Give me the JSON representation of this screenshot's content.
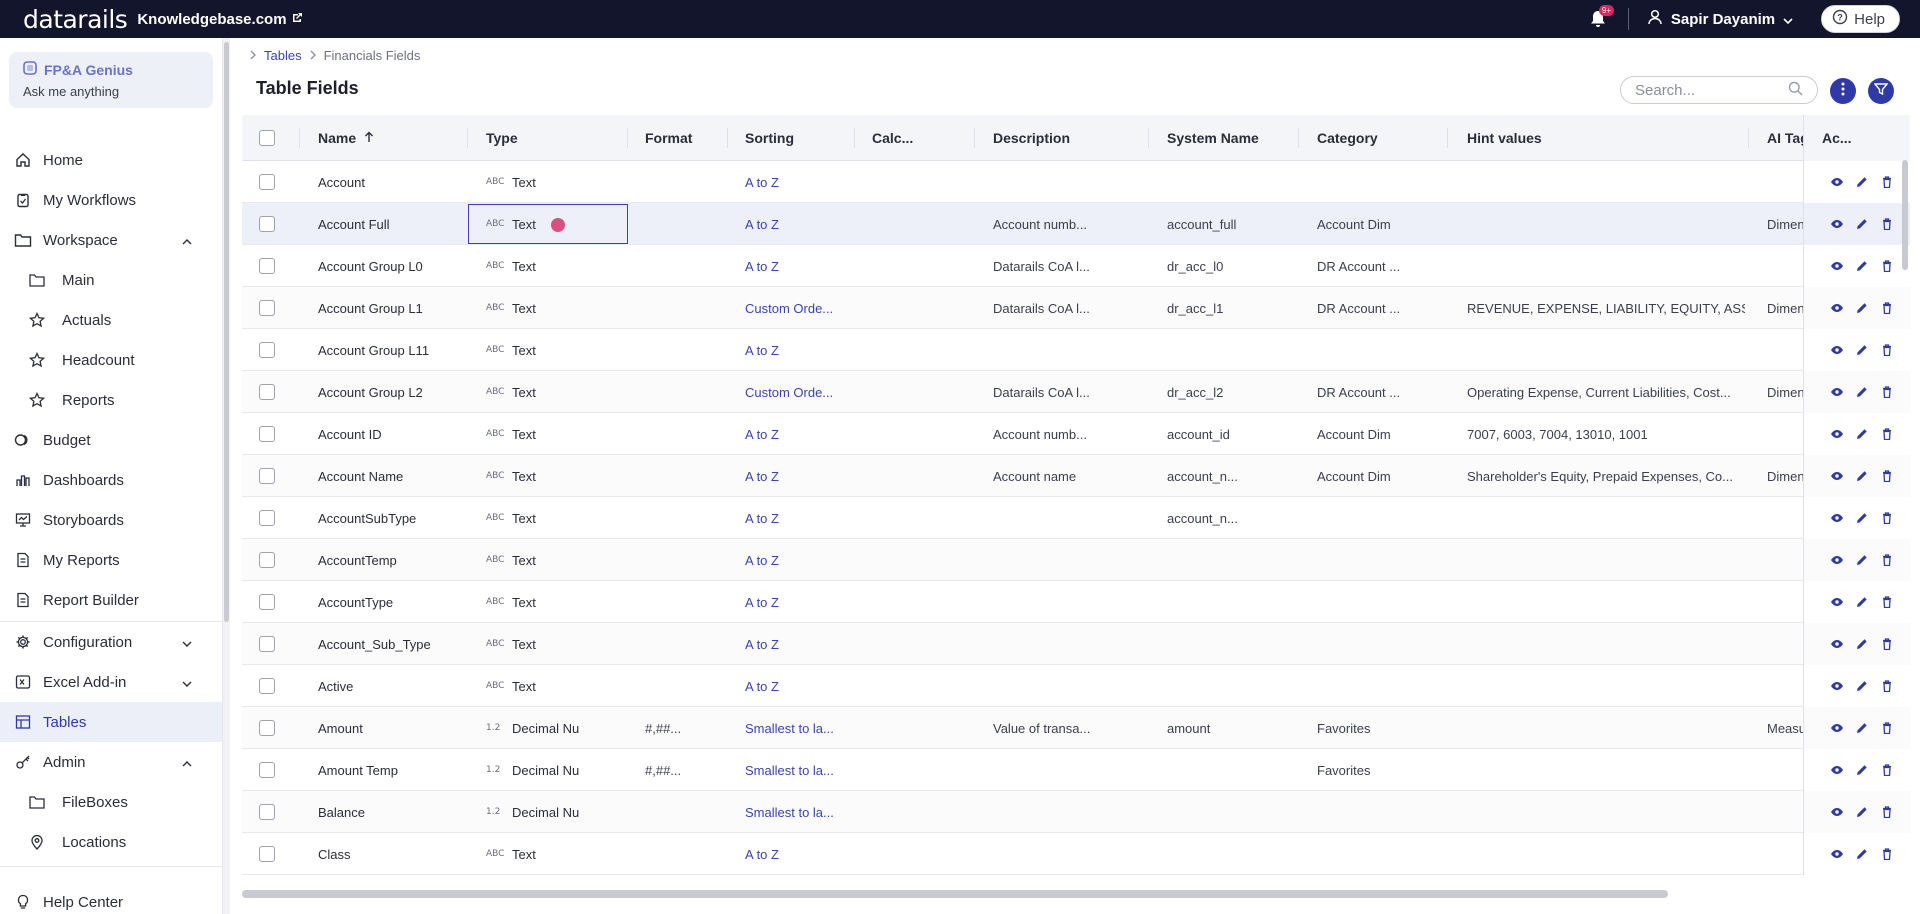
{
  "topbar": {
    "logo": "datarails",
    "workspace": "Knowledgebase.com",
    "notifications_badge": "9+",
    "user_name": "Sapir Dayanim",
    "help_label": "Help"
  },
  "sidebar": {
    "genius_title": "FP&A Genius",
    "genius_sub": "Ask me anything",
    "items": [
      {
        "label": "Home",
        "icon": "home-icon"
      },
      {
        "label": "My Workflows",
        "icon": "clipboard-icon"
      },
      {
        "label": "Workspace",
        "icon": "folder-icon"
      },
      {
        "label": "Main",
        "icon": "folder-icon"
      },
      {
        "label": "Actuals",
        "icon": "star-icon"
      },
      {
        "label": "Headcount",
        "icon": "star-icon"
      },
      {
        "label": "Reports",
        "icon": "star-icon"
      },
      {
        "label": "Budget",
        "icon": "coins-icon"
      },
      {
        "label": "Dashboards",
        "icon": "bar-chart-icon"
      },
      {
        "label": "Storyboards",
        "icon": "presentation-icon"
      },
      {
        "label": "My Reports",
        "icon": "document-icon"
      },
      {
        "label": "Report Builder",
        "icon": "document-icon"
      },
      {
        "label": "Configuration",
        "icon": "gear-icon"
      },
      {
        "label": "Excel Add-in",
        "icon": "excel-icon"
      },
      {
        "label": "Tables",
        "icon": "table-icon"
      },
      {
        "label": "Admin",
        "icon": "key-icon"
      },
      {
        "label": "FileBoxes",
        "icon": "folder-icon"
      },
      {
        "label": "Locations",
        "icon": "pin-icon"
      }
    ],
    "help_center": "Help Center"
  },
  "breadcrumb": {
    "tables": "Tables",
    "current": "Financials Fields"
  },
  "page_title": "Table Fields",
  "search": {
    "placeholder": "Search..."
  },
  "table": {
    "headers": {
      "name": "Name",
      "type": "Type",
      "format": "Format",
      "sorting": "Sorting",
      "calc": "Calc...",
      "description": "Description",
      "system_name": "System Name",
      "category": "Category",
      "hint_values": "Hint values",
      "ai_tag": "AI Tag",
      "actions": "Ac..."
    },
    "rows": [
      {
        "name": "Account",
        "type_icon": "ABC",
        "type": "Text",
        "format": "",
        "sorting": "A to Z",
        "description": "",
        "system_name": "",
        "category": "",
        "hint": "",
        "ai_tag": ""
      },
      {
        "name": "Account Full",
        "type_icon": "ABC",
        "type": "Text",
        "format": "",
        "sorting": "A to Z",
        "description": "Account numb...",
        "system_name": "account_full",
        "category": "Account Dim",
        "hint": "",
        "ai_tag": "Dimen"
      },
      {
        "name": "Account Group L0",
        "type_icon": "ABC",
        "type": "Text",
        "format": "",
        "sorting": "A to Z",
        "description": "Datarails CoA l...",
        "system_name": "dr_acc_l0",
        "category": "DR Account ...",
        "hint": "",
        "ai_tag": ""
      },
      {
        "name": "Account Group L1",
        "type_icon": "ABC",
        "type": "Text",
        "format": "",
        "sorting": "Custom Orde...",
        "description": "Datarails CoA l...",
        "system_name": "dr_acc_l1",
        "category": "DR Account ...",
        "hint": "REVENUE, EXPENSE, LIABILITY, EQUITY, ASSET",
        "ai_tag": "Dimen"
      },
      {
        "name": "Account Group L11",
        "type_icon": "ABC",
        "type": "Text",
        "format": "",
        "sorting": "A to Z",
        "description": "",
        "system_name": "",
        "category": "",
        "hint": "",
        "ai_tag": ""
      },
      {
        "name": "Account Group L2",
        "type_icon": "ABC",
        "type": "Text",
        "format": "",
        "sorting": "Custom Orde...",
        "description": "Datarails CoA l...",
        "system_name": "dr_acc_l2",
        "category": "DR Account ...",
        "hint": "Operating Expense, Current Liabilities, Cost...",
        "ai_tag": "Dimen"
      },
      {
        "name": "Account ID",
        "type_icon": "ABC",
        "type": "Text",
        "format": "",
        "sorting": "A to Z",
        "description": "Account numb...",
        "system_name": "account_id",
        "category": "Account Dim",
        "hint": "7007, 6003, 7004, 13010, 1001",
        "ai_tag": ""
      },
      {
        "name": "Account Name",
        "type_icon": "ABC",
        "type": "Text",
        "format": "",
        "sorting": "A to Z",
        "description": "Account name",
        "system_name": "account_n...",
        "category": "Account Dim",
        "hint": "Shareholder's Equity, Prepaid Expenses, Co...",
        "ai_tag": "Dimen"
      },
      {
        "name": "AccountSubType",
        "type_icon": "ABC",
        "type": "Text",
        "format": "",
        "sorting": "A to Z",
        "description": "",
        "system_name": "account_n...",
        "category": "",
        "hint": "",
        "ai_tag": ""
      },
      {
        "name": "AccountTemp",
        "type_icon": "ABC",
        "type": "Text",
        "format": "",
        "sorting": "A to Z",
        "description": "",
        "system_name": "",
        "category": "",
        "hint": "",
        "ai_tag": ""
      },
      {
        "name": "AccountType",
        "type_icon": "ABC",
        "type": "Text",
        "format": "",
        "sorting": "A to Z",
        "description": "",
        "system_name": "",
        "category": "",
        "hint": "",
        "ai_tag": ""
      },
      {
        "name": "Account_Sub_Type",
        "type_icon": "ABC",
        "type": "Text",
        "format": "",
        "sorting": "A to Z",
        "description": "",
        "system_name": "",
        "category": "",
        "hint": "",
        "ai_tag": ""
      },
      {
        "name": "Active",
        "type_icon": "ABC",
        "type": "Text",
        "format": "",
        "sorting": "A to Z",
        "description": "",
        "system_name": "",
        "category": "",
        "hint": "",
        "ai_tag": ""
      },
      {
        "name": "Amount",
        "type_icon": "1.2",
        "type": "Decimal Nu",
        "format": "#,##...",
        "sorting": "Smallest to la...",
        "description": "Value of transa...",
        "system_name": "amount",
        "category": "Favorites",
        "hint": "",
        "ai_tag": "Measu"
      },
      {
        "name": "Amount Temp",
        "type_icon": "1.2",
        "type": "Decimal Nu",
        "format": "#,##...",
        "sorting": "Smallest to la...",
        "description": "",
        "system_name": "",
        "category": "Favorites",
        "hint": "",
        "ai_tag": ""
      },
      {
        "name": "Balance",
        "type_icon": "1.2",
        "type": "Decimal Nu",
        "format": "",
        "sorting": "Smallest to la...",
        "description": "",
        "system_name": "",
        "category": "",
        "hint": "",
        "ai_tag": ""
      },
      {
        "name": "Class",
        "type_icon": "ABC",
        "type": "Text",
        "format": "",
        "sorting": "A to Z",
        "description": "",
        "system_name": "",
        "category": "",
        "hint": "",
        "ai_tag": ""
      }
    ]
  },
  "colors": {
    "accent": "#2f3aa8",
    "link": "#3844b8",
    "topbar": "#13152c",
    "badge": "#e0245e"
  }
}
